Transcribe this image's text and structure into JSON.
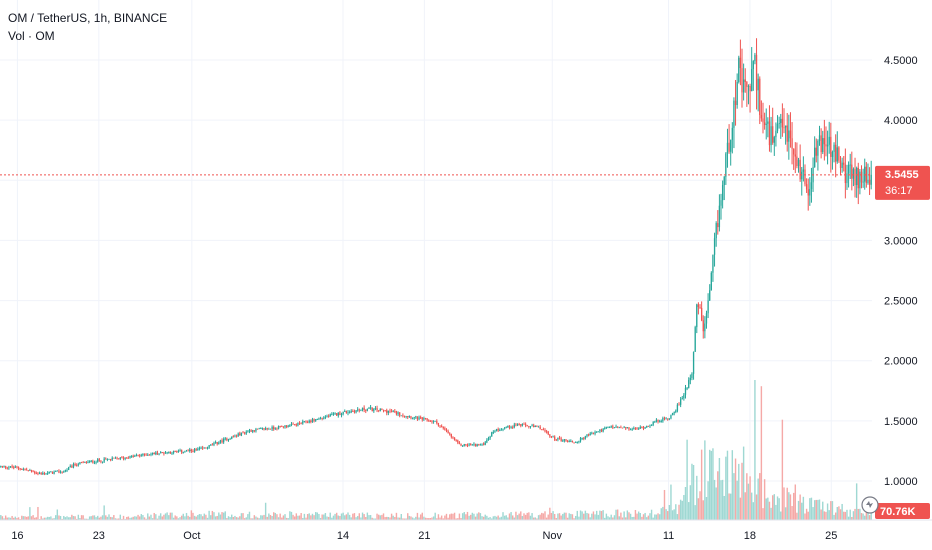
{
  "header": {
    "symbol_line": "OM / TetherUS, 1h, BINANCE",
    "volume_label": "Vol · OM"
  },
  "chart_data": {
    "type": "candlestick",
    "symbol": "OM / TetherUS",
    "interval": "1h",
    "exchange": "BINANCE",
    "y_ticks": [
      "1.0000",
      "1.5000",
      "2.0000",
      "2.5000",
      "3.0000",
      "3.5000",
      "4.0000",
      "4.5000"
    ],
    "y_tick_values": [
      1.0,
      1.5,
      2.0,
      2.5,
      3.0,
      3.5,
      4.0,
      4.5
    ],
    "ylim": [
      0.85,
      4.65
    ],
    "x_ticks": [
      "16",
      "23",
      "Oct",
      "14",
      "21",
      "Nov",
      "11",
      "18",
      "25"
    ],
    "x_tick_days": [
      0,
      7,
      15,
      28,
      35,
      46,
      56,
      63,
      70
    ],
    "x_range_days": [
      -1.5,
      73.5
    ],
    "last_price": "3.5455",
    "last_price_value": 3.5455,
    "countdown": "36:17",
    "last_volume": "70.76K",
    "price_path": [
      [
        -1.5,
        1.12
      ],
      [
        0,
        1.11
      ],
      [
        2,
        1.06
      ],
      [
        4,
        1.08
      ],
      [
        5,
        1.14
      ],
      [
        7,
        1.17
      ],
      [
        9,
        1.19
      ],
      [
        11,
        1.22
      ],
      [
        13,
        1.24
      ],
      [
        15,
        1.25
      ],
      [
        16,
        1.27
      ],
      [
        18,
        1.35
      ],
      [
        20,
        1.42
      ],
      [
        22,
        1.44
      ],
      [
        24,
        1.47
      ],
      [
        26,
        1.52
      ],
      [
        28,
        1.57
      ],
      [
        30,
        1.6
      ],
      [
        32,
        1.58
      ],
      [
        34,
        1.53
      ],
      [
        36,
        1.49
      ],
      [
        37,
        1.4
      ],
      [
        38,
        1.3
      ],
      [
        40,
        1.3
      ],
      [
        41,
        1.42
      ],
      [
        43,
        1.47
      ],
      [
        45,
        1.44
      ],
      [
        46,
        1.36
      ],
      [
        48,
        1.32
      ],
      [
        49,
        1.38
      ],
      [
        51,
        1.45
      ],
      [
        53,
        1.43
      ],
      [
        54,
        1.45
      ],
      [
        55,
        1.5
      ],
      [
        56,
        1.52
      ],
      [
        57,
        1.65
      ],
      [
        58,
        1.9
      ],
      [
        58.5,
        2.5
      ],
      [
        59,
        2.25
      ],
      [
        59.5,
        2.5
      ],
      [
        60,
        3.0
      ],
      [
        61,
        3.7
      ],
      [
        62,
        4.4
      ],
      [
        62.5,
        4.2
      ],
      [
        63,
        4.3
      ],
      [
        63.5,
        4.45
      ],
      [
        64,
        4.0
      ],
      [
        65,
        3.8
      ],
      [
        66,
        3.95
      ],
      [
        67,
        3.65
      ],
      [
        68,
        3.45
      ],
      [
        69,
        3.85
      ],
      [
        70,
        3.75
      ],
      [
        71,
        3.6
      ],
      [
        72,
        3.5
      ],
      [
        73,
        3.58
      ],
      [
        73.5,
        3.5455
      ]
    ],
    "volume_scale_max_k": 900,
    "volume_profile": [
      [
        -1.5,
        30
      ],
      [
        10,
        35
      ],
      [
        15,
        60
      ],
      [
        20,
        55
      ],
      [
        28,
        50
      ],
      [
        35,
        45
      ],
      [
        40,
        50
      ],
      [
        45,
        55
      ],
      [
        50,
        60
      ],
      [
        55,
        70
      ],
      [
        57,
        150
      ],
      [
        58,
        350
      ],
      [
        59,
        500
      ],
      [
        60,
        550
      ],
      [
        62,
        500
      ],
      [
        64,
        300
      ],
      [
        66,
        200
      ],
      [
        68,
        150
      ],
      [
        70,
        120
      ],
      [
        73.5,
        70
      ]
    ],
    "grid": true,
    "colors": {
      "up": "#26a69a",
      "down": "#ef5350",
      "up_volume": "#9fd8d3",
      "down_volume": "#f5a9a7",
      "grid": "#f0f3fa",
      "text": "#131722",
      "price_line": "#ef5350"
    }
  }
}
